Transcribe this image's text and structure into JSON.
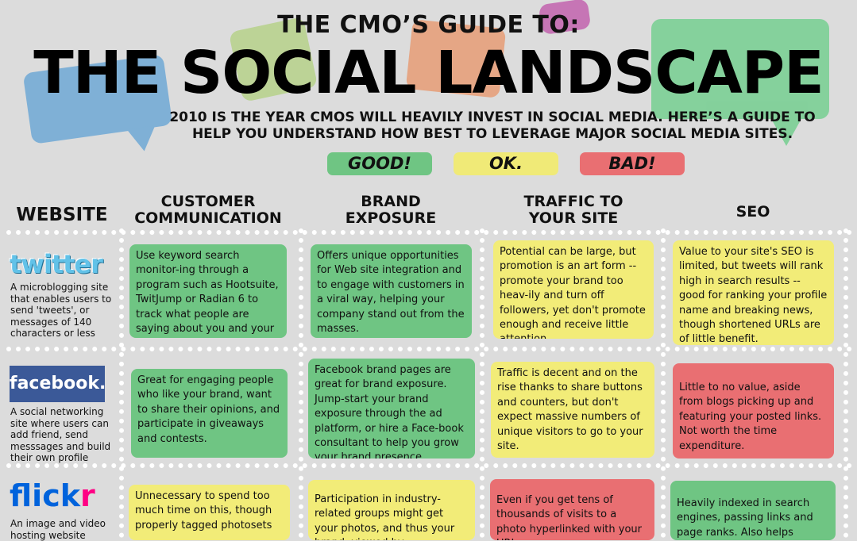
{
  "header": {
    "kicker": "THE CMO’S GUIDE TO:",
    "title": "THE SOCIAL LANDSCAPE",
    "intro_line1": "2010 IS THE YEAR CMOS WILL HEAVILY INVEST IN SOCIAL MEDIA.  HERE’S A GUIDE TO",
    "intro_line2": "HELP YOU UNDERSTAND HOW BEST TO LEVERAGE MAJOR SOCIAL MEDIA SITES."
  },
  "legend": {
    "good": "GOOD!",
    "ok": "OK.",
    "bad": "BAD!"
  },
  "colors": {
    "good": "#6fc583",
    "ok": "#f2ec78",
    "bad": "#e96f72",
    "background": "#dcdcdc"
  },
  "columns": {
    "website": "WEBSITE",
    "customer_1": "CUSTOMER",
    "customer_2": "COMMUNICATION",
    "brand_1": "BRAND",
    "brand_2": "EXPOSURE",
    "traffic_1": "TRAFFIC TO",
    "traffic_2": "YOUR SITE",
    "seo": "SEO"
  },
  "rows": [
    {
      "logo": "twitter",
      "description": "A microblogging site that enables users to send 'tweets', or messages of 140 characters or less",
      "cells": [
        {
          "rating": "good",
          "text": "Use keyword search monitor-ing through a program such as Hootsuite, TwitJump or Radian 6 to track what people are saying about you and your competitors."
        },
        {
          "rating": "good",
          "text": "Offers unique opportunities for Web site integration and to engage with customers in a viral way, helping your company stand out from the masses."
        },
        {
          "rating": "ok",
          "text": "Potential can be large, but promotion is an art form -- promote your brand too heav-ily and turn off followers, yet don't promote enough and receive little attention."
        },
        {
          "rating": "ok",
          "text": "Value to your site's SEO is limited, but tweets will rank high in search results -- good for ranking your profile name and breaking news, though shortened URLs are of little benefit."
        }
      ]
    },
    {
      "logo": "facebook.",
      "description": "A social networking site where users can add friend, send messsages and build their own profile",
      "cells": [
        {
          "rating": "good",
          "text": "Great for engaging people who like your brand, want to share their opinions, and participate in giveaways and contests."
        },
        {
          "rating": "good",
          "text": "Facebook brand pages are great for brand exposure. Jump-start your brand exposure through the ad platform, or hire a Face-book consultant to help you grow your brand presence."
        },
        {
          "rating": "ok",
          "text": "Traffic is decent and on the rise thanks to share buttons and counters, but don't expect massive numbers of unique visitors to go to your site."
        },
        {
          "rating": "bad",
          "text": "Little to no value, aside from blogs picking up and featuring your posted links. Not worth the time expenditure."
        }
      ]
    },
    {
      "logo_a": "flick",
      "logo_b": "r",
      "description": "An image and video hosting website",
      "cells": [
        {
          "rating": "ok",
          "text": "Unnecessary to spend too much time on this, though properly tagged photosets"
        },
        {
          "rating": "ok",
          "text": "Participation in industry-related groups might get your photos, and thus your brand, viewed by"
        },
        {
          "rating": "bad",
          "text": "Even if you get tens of thousands of visits to a photo hyperlinked with your URL,"
        },
        {
          "rating": "good",
          "text": "Heavily indexed in search engines, passing links and page ranks. Also helps images rank"
        }
      ]
    }
  ]
}
